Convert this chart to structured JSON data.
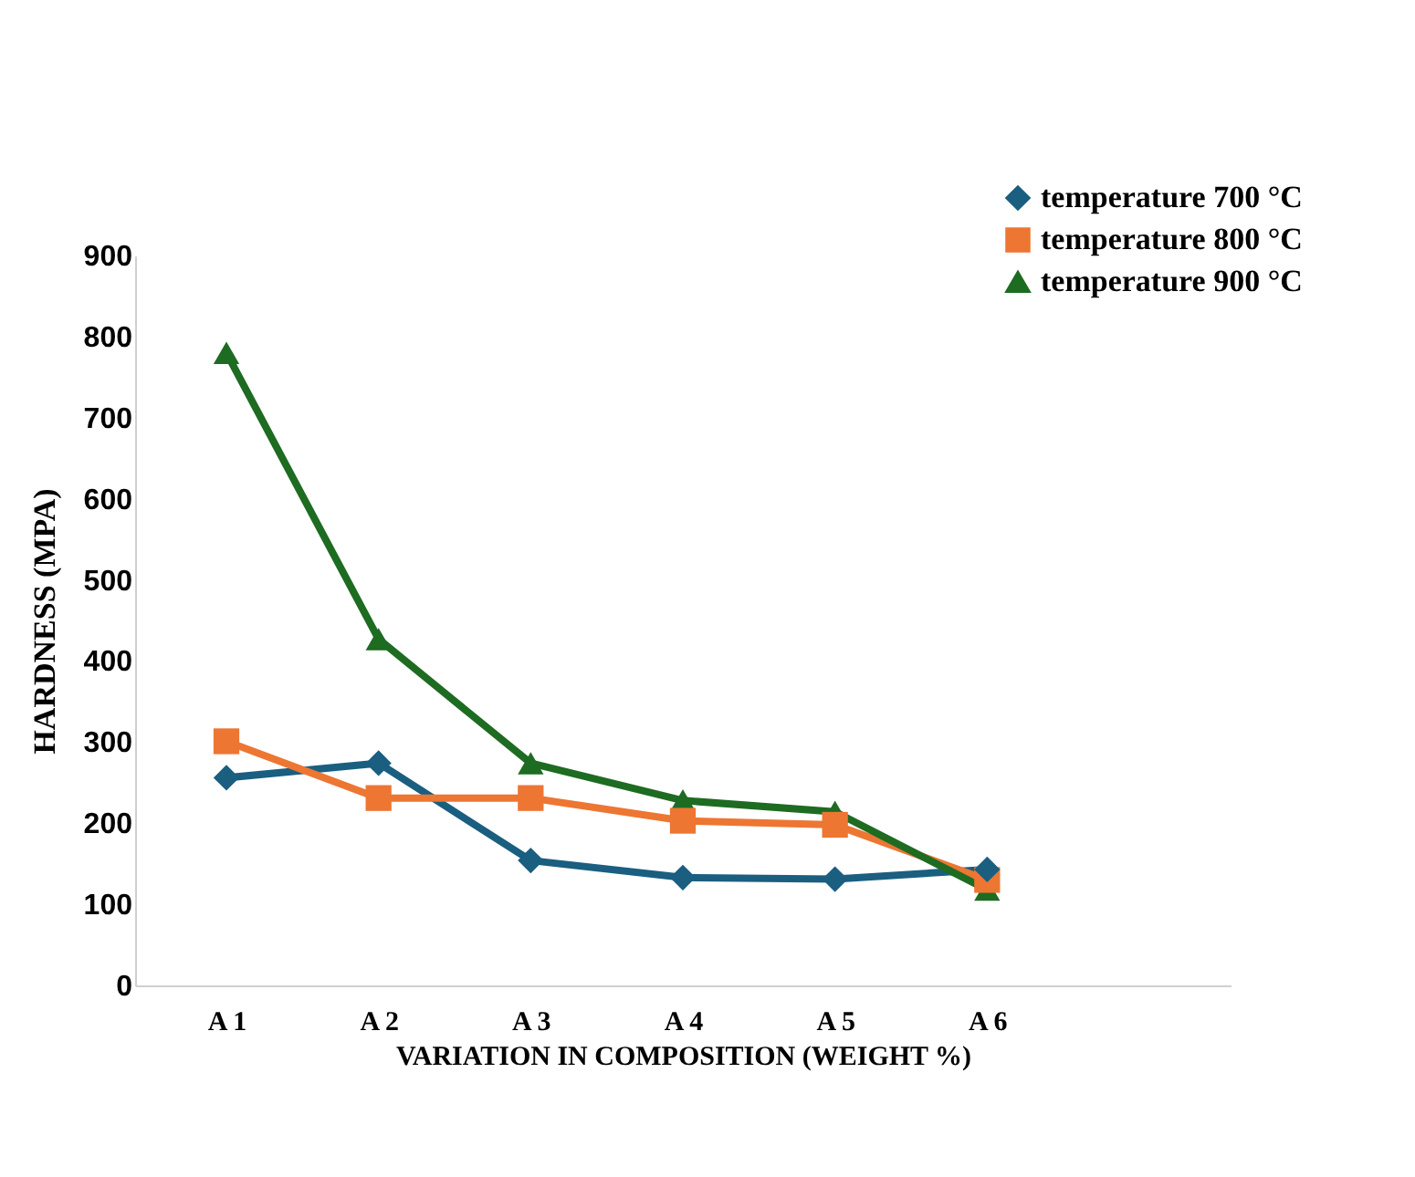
{
  "chart_data": {
    "type": "line",
    "xlabel": "VARIATION IN COMPOSITION (WEIGHT %)",
    "ylabel": "HARDNESS (MPA)",
    "categories": [
      "A 1",
      "A 2",
      "A 3",
      "A 4",
      "A 5",
      "A 6"
    ],
    "series": [
      {
        "name": "temperature 700 °C",
        "color": "#1a5e80",
        "marker": "diamond",
        "values": [
          256,
          274,
          154,
          133,
          131,
          143
        ]
      },
      {
        "name": "temperature 800 °C",
        "color": "#ed7633",
        "marker": "square",
        "values": [
          301,
          231,
          231,
          203,
          198,
          130
        ]
      },
      {
        "name": "temperature 900 °C",
        "color": "#1e6b22",
        "marker": "triangle",
        "values": [
          780,
          427,
          274,
          228,
          214,
          118
        ]
      }
    ],
    "ylim": [
      0,
      900
    ],
    "yticks": [
      0,
      100,
      200,
      300,
      400,
      500,
      600,
      700,
      800,
      900
    ],
    "grid": false,
    "legend": "top right",
    "line_style": "solid"
  }
}
